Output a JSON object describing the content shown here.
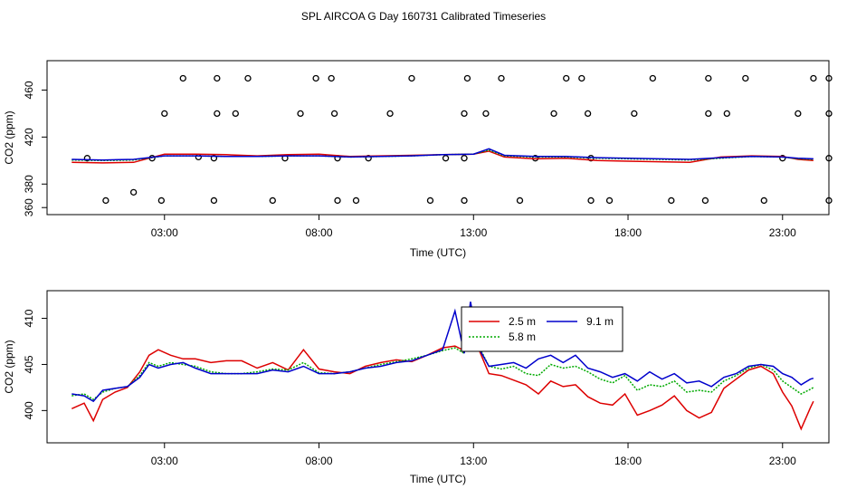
{
  "figure": {
    "title": "SPL AIRCOA G  Day 160731  Calibrated Timeseries"
  },
  "colors": {
    "s25": "#dd0000",
    "s58": "#00aa00",
    "s91": "#0000cc",
    "axis": "#000000"
  },
  "chart_data": [
    {
      "type": "scatter+line",
      "title": "",
      "xlabel": "Time (UTC)",
      "ylabel": "CO2 (ppm)",
      "xlim": [
        -0.8,
        24.5
      ],
      "ylim": [
        354,
        485
      ],
      "xticks": [
        {
          "v": 3,
          "label": "03:00"
        },
        {
          "v": 8,
          "label": "08:00"
        },
        {
          "v": 13,
          "label": "13:00"
        },
        {
          "v": 18,
          "label": "18:00"
        },
        {
          "v": 23,
          "label": "23:00"
        }
      ],
      "yticks": [
        {
          "v": 380,
          "label": "380"
        },
        {
          "v": 420,
          "label": "420"
        },
        {
          "v": 460,
          "label": "460"
        },
        {
          "v": 360,
          "label": "360"
        }
      ],
      "open_circle_points": [
        [
          1.1,
          366
        ],
        [
          2.0,
          373
        ],
        [
          2.9,
          366
        ],
        [
          2.6,
          402
        ],
        [
          3.0,
          440
        ],
        [
          3.6,
          470
        ],
        [
          4.1,
          403
        ],
        [
          4.6,
          366
        ],
        [
          4.6,
          402
        ],
        [
          4.7,
          440
        ],
        [
          4.7,
          470
        ],
        [
          5.3,
          440
        ],
        [
          5.7,
          470
        ],
        [
          6.5,
          366
        ],
        [
          6.9,
          402
        ],
        [
          7.4,
          440
        ],
        [
          7.9,
          470
        ],
        [
          8.4,
          470
        ],
        [
          8.5,
          440
        ],
        [
          8.6,
          366
        ],
        [
          8.6,
          402
        ],
        [
          9.2,
          366
        ],
        [
          9.6,
          402
        ],
        [
          10.3,
          440
        ],
        [
          11.0,
          470
        ],
        [
          11.6,
          366
        ],
        [
          12.1,
          402
        ],
        [
          12.7,
          366
        ],
        [
          12.7,
          402
        ],
        [
          12.7,
          440
        ],
        [
          12.8,
          470
        ],
        [
          13.4,
          440
        ],
        [
          13.9,
          470
        ],
        [
          14.5,
          366
        ],
        [
          15.0,
          402
        ],
        [
          15.6,
          440
        ],
        [
          16.0,
          470
        ],
        [
          16.5,
          470
        ],
        [
          16.7,
          440
        ],
        [
          16.8,
          402
        ],
        [
          16.8,
          366
        ],
        [
          17.4,
          366
        ],
        [
          18.2,
          440
        ],
        [
          18.8,
          470
        ],
        [
          19.4,
          366
        ],
        [
          20.5,
          366
        ],
        [
          20.6,
          440
        ],
        [
          20.6,
          470
        ],
        [
          21.2,
          440
        ],
        [
          21.8,
          470
        ],
        [
          22.4,
          366
        ],
        [
          23.0,
          402
        ],
        [
          23.5,
          440
        ],
        [
          24.0,
          470
        ],
        [
          24.5,
          366
        ],
        [
          24.5,
          402
        ],
        [
          24.5,
          440
        ],
        [
          24.5,
          470
        ],
        [
          0.5,
          402
        ]
      ],
      "series": [
        {
          "name": "2.5 m",
          "color": "#dd0000",
          "x": [
            0.0,
            1.0,
            2.0,
            3.0,
            4.0,
            5.0,
            6.0,
            7.0,
            8.0,
            9.0,
            10.0,
            11.0,
            12.0,
            13.0,
            13.5,
            14.0,
            15.0,
            16.0,
            17.0,
            18.0,
            19.0,
            20.0,
            21.0,
            22.0,
            23.0,
            23.5,
            24.0
          ],
          "y": [
            398.5,
            398.0,
            398.5,
            405.5,
            405.5,
            405.0,
            404.0,
            405.0,
            405.5,
            403.5,
            404.0,
            404.5,
            405.0,
            405.5,
            408.0,
            403.0,
            401.5,
            402.0,
            400.0,
            399.5,
            399.0,
            398.5,
            403.0,
            404.0,
            403.5,
            401.0,
            400.0
          ]
        },
        {
          "name": "5.8 m",
          "color": "#00aa00",
          "x": [
            0.0,
            1.0,
            2.0,
            3.0,
            4.0,
            5.0,
            6.0,
            7.0,
            8.0,
            9.0,
            10.0,
            11.0,
            12.0,
            13.0,
            13.5,
            14.0,
            15.0,
            16.0,
            17.0,
            18.0,
            19.0,
            20.0,
            21.0,
            22.0,
            23.0,
            23.5,
            24.0
          ],
          "y": [
            400.5,
            400.0,
            400.5,
            404.0,
            404.0,
            403.5,
            403.5,
            404.0,
            404.0,
            403.0,
            403.5,
            404.0,
            405.0,
            405.5,
            409.0,
            404.0,
            403.0,
            403.0,
            402.0,
            401.5,
            401.0,
            400.5,
            402.0,
            403.5,
            403.0,
            401.5,
            401.0
          ]
        },
        {
          "name": "9.1 m",
          "color": "#0000cc",
          "x": [
            0.0,
            1.0,
            2.0,
            3.0,
            4.0,
            5.0,
            6.0,
            7.0,
            8.0,
            9.0,
            10.0,
            11.0,
            12.0,
            13.0,
            13.5,
            14.0,
            15.0,
            16.0,
            17.0,
            18.0,
            19.0,
            20.0,
            21.0,
            22.0,
            23.0,
            23.5,
            24.0
          ],
          "y": [
            401.0,
            400.5,
            401.0,
            404.0,
            404.0,
            403.5,
            403.5,
            404.0,
            404.0,
            403.0,
            403.5,
            404.0,
            405.0,
            405.5,
            410.0,
            404.5,
            403.5,
            403.5,
            402.5,
            402.0,
            401.5,
            401.0,
            402.5,
            403.5,
            403.0,
            402.0,
            401.5
          ]
        }
      ]
    },
    {
      "type": "line",
      "title": "",
      "xlabel": "Time (UTC)",
      "ylabel": "CO2 (ppm)",
      "xlim": [
        -0.8,
        24.5
      ],
      "ylim": [
        396.5,
        413.0
      ],
      "xticks": [
        {
          "v": 3,
          "label": "03:00"
        },
        {
          "v": 8,
          "label": "08:00"
        },
        {
          "v": 13,
          "label": "13:00"
        },
        {
          "v": 18,
          "label": "18:00"
        },
        {
          "v": 23,
          "label": "23:00"
        }
      ],
      "yticks": [
        {
          "v": 400,
          "label": "400"
        },
        {
          "v": 405,
          "label": "405"
        },
        {
          "v": 410,
          "label": "410"
        }
      ],
      "legend": {
        "placement": "top-center",
        "entries": [
          "2.5 m",
          "5.8 m",
          "9.1 m"
        ]
      },
      "series": [
        {
          "name": "2.5 m",
          "color": "#dd0000",
          "x": [
            0.0,
            0.4,
            0.7,
            1.0,
            1.4,
            1.8,
            2.2,
            2.5,
            2.8,
            3.2,
            3.6,
            4.0,
            4.5,
            5.0,
            5.5,
            6.0,
            6.5,
            7.0,
            7.5,
            8.0,
            8.5,
            9.0,
            9.5,
            10.0,
            10.5,
            11.0,
            11.5,
            12.0,
            12.4,
            12.7,
            12.9,
            13.2,
            13.5,
            13.9,
            14.3,
            14.7,
            15.1,
            15.5,
            15.9,
            16.3,
            16.7,
            17.1,
            17.5,
            17.9,
            18.3,
            18.7,
            19.1,
            19.5,
            19.9,
            20.3,
            20.7,
            21.1,
            21.5,
            21.9,
            22.3,
            22.7,
            23.0,
            23.3,
            23.6,
            23.9,
            24.0
          ],
          "y": [
            400.2,
            400.8,
            398.9,
            401.2,
            402.0,
            402.5,
            404.2,
            406.0,
            406.6,
            406.0,
            405.6,
            405.6,
            405.2,
            405.4,
            405.4,
            404.6,
            405.2,
            404.4,
            406.6,
            404.5,
            404.2,
            404.0,
            404.8,
            405.2,
            405.5,
            405.3,
            406.0,
            406.8,
            407.0,
            406.5,
            411.5,
            406.4,
            404.0,
            403.8,
            403.3,
            402.8,
            401.8,
            403.2,
            402.6,
            402.8,
            401.5,
            400.8,
            400.6,
            401.8,
            399.5,
            400.0,
            400.6,
            401.6,
            400.0,
            399.2,
            399.8,
            402.4,
            403.4,
            404.4,
            404.8,
            404.0,
            402.0,
            400.5,
            398.0,
            400.3,
            401.0
          ]
        },
        {
          "name": "5.8 m",
          "color": "#00aa00",
          "x": [
            0.0,
            0.4,
            0.7,
            1.0,
            1.4,
            1.8,
            2.2,
            2.5,
            2.8,
            3.2,
            3.6,
            4.0,
            4.5,
            5.0,
            5.5,
            6.0,
            6.5,
            7.0,
            7.5,
            8.0,
            8.5,
            9.0,
            9.5,
            10.0,
            10.5,
            11.0,
            11.5,
            12.0,
            12.4,
            12.7,
            12.9,
            13.2,
            13.5,
            13.9,
            14.3,
            14.7,
            15.1,
            15.5,
            15.9,
            16.3,
            16.7,
            17.1,
            17.5,
            17.9,
            18.3,
            18.7,
            19.1,
            19.5,
            19.9,
            20.3,
            20.7,
            21.1,
            21.5,
            21.9,
            22.3,
            22.7,
            23.0,
            23.3,
            23.6,
            23.9,
            24.0
          ],
          "y": [
            401.6,
            401.8,
            401.2,
            402.0,
            402.4,
            402.6,
            403.8,
            405.2,
            404.8,
            405.2,
            405.0,
            404.8,
            404.2,
            404.0,
            404.0,
            404.2,
            404.5,
            404.4,
            405.2,
            404.1,
            404.0,
            404.2,
            404.6,
            405.0,
            405.3,
            405.6,
            406.0,
            406.5,
            406.8,
            406.2,
            410.2,
            406.8,
            404.8,
            404.5,
            404.8,
            404.0,
            403.8,
            405.0,
            404.6,
            404.8,
            404.2,
            403.4,
            403.0,
            403.8,
            402.2,
            402.8,
            402.6,
            403.2,
            402.0,
            402.2,
            402.0,
            403.2,
            403.8,
            404.6,
            405.0,
            404.4,
            403.2,
            402.5,
            401.8,
            402.3,
            402.5
          ]
        },
        {
          "name": "9.1 m",
          "color": "#0000cc",
          "x": [
            0.0,
            0.4,
            0.7,
            1.0,
            1.4,
            1.8,
            2.2,
            2.5,
            2.8,
            3.2,
            3.6,
            4.0,
            4.5,
            5.0,
            5.5,
            6.0,
            6.5,
            7.0,
            7.5,
            8.0,
            8.5,
            9.0,
            9.5,
            10.0,
            10.5,
            11.0,
            11.5,
            12.0,
            12.4,
            12.7,
            12.9,
            13.2,
            13.5,
            13.9,
            14.3,
            14.7,
            15.1,
            15.5,
            15.9,
            16.3,
            16.7,
            17.1,
            17.5,
            17.9,
            18.3,
            18.7,
            19.1,
            19.5,
            19.9,
            20.3,
            20.7,
            21.1,
            21.5,
            21.9,
            22.3,
            22.7,
            23.0,
            23.3,
            23.6,
            23.9,
            24.0
          ],
          "y": [
            401.8,
            401.6,
            401.0,
            402.2,
            402.4,
            402.6,
            403.6,
            405.0,
            404.6,
            405.0,
            405.2,
            404.6,
            404.0,
            404.0,
            404.0,
            404.0,
            404.4,
            404.2,
            404.8,
            404.0,
            404.0,
            404.2,
            404.6,
            404.8,
            405.2,
            405.4,
            406.0,
            406.6,
            410.8,
            406.2,
            411.8,
            406.6,
            404.8,
            405.0,
            405.2,
            404.6,
            405.6,
            406.0,
            405.2,
            406.0,
            404.6,
            404.2,
            403.6,
            404.0,
            403.2,
            404.2,
            403.4,
            404.0,
            403.0,
            403.2,
            402.6,
            403.6,
            404.0,
            404.8,
            405.0,
            404.8,
            404.0,
            403.6,
            402.8,
            403.4,
            403.5
          ]
        }
      ]
    }
  ]
}
